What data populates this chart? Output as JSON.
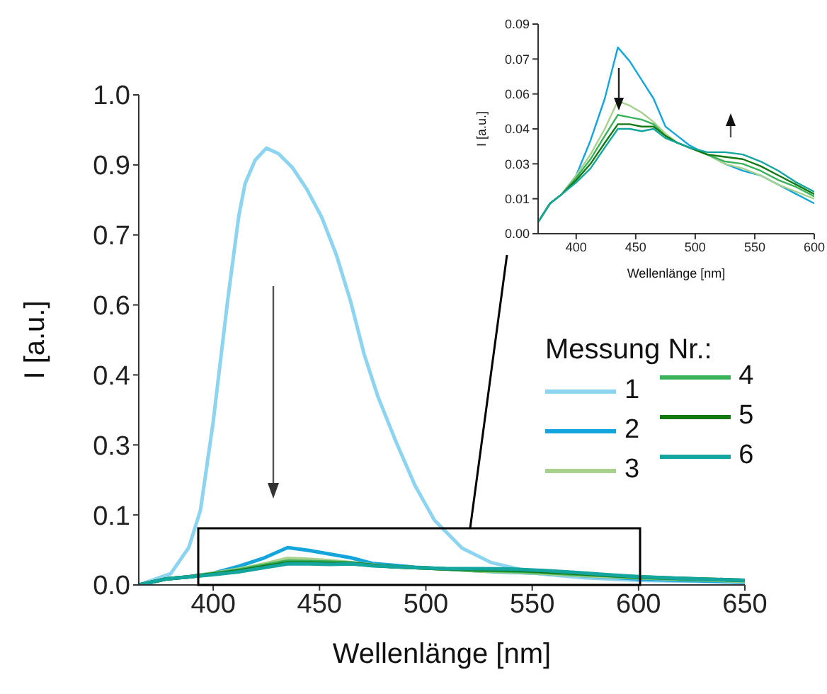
{
  "chart_data": [
    {
      "type": "line",
      "xlabel": "Wellenlänge [nm]",
      "ylabel": "I [a.u.]",
      "legend_title": "Messung Nr.:",
      "legend": "right",
      "xlim": [
        365,
        650
      ],
      "xticks": [
        400,
        450,
        500,
        550,
        600,
        650
      ],
      "ylim": [
        0,
        1.05
      ],
      "yticks": [
        {
          "value": 0,
          "label": "0.0"
        },
        {
          "value": 0.15,
          "label": "0.1"
        },
        0.3,
        {
          "value": 0.45,
          "label": "0.4"
        },
        0.6,
        {
          "value": 0.75,
          "label": "0.7"
        },
        0.9,
        {
          "value": 1.05,
          "label": "1.0"
        }
      ],
      "series": [
        {
          "name": "1",
          "color": "#8dd4f0",
          "x": [
            365,
            380,
            388.5,
            394,
            400,
            406.7,
            412,
            415,
            419.7,
            425,
            430.7,
            437.3,
            444,
            451,
            458,
            464.7,
            471,
            477.5,
            486.3,
            495,
            504,
            517,
            530.7,
            553,
            575,
            600,
            650
          ],
          "values": [
            0,
            0.024,
            0.08,
            0.16,
            0.35,
            0.606,
            0.79,
            0.86,
            0.91,
            0.936,
            0.924,
            0.894,
            0.848,
            0.788,
            0.706,
            0.606,
            0.494,
            0.403,
            0.303,
            0.212,
            0.139,
            0.079,
            0.048,
            0.024,
            0.015,
            0.01,
            0.006
          ]
        },
        {
          "name": "2",
          "color": "#14a5dc",
          "x": [
            365,
            378,
            388,
            400,
            412,
            424,
            435,
            445,
            455,
            465,
            475,
            485,
            495,
            510,
            525,
            540,
            555,
            570,
            585,
            600,
            620,
            650
          ],
          "values": [
            0,
            0.013,
            0.017,
            0.025,
            0.04,
            0.058,
            0.08,
            0.074,
            0.066,
            0.058,
            0.046,
            0.042,
            0.038,
            0.034,
            0.03,
            0.027,
            0.025,
            0.021,
            0.017,
            0.013,
            0.01,
            0.006
          ]
        },
        {
          "name": "3",
          "color": "#a9d18e",
          "x": [
            365,
            378,
            388,
            400,
            412,
            424,
            435,
            445,
            455,
            465,
            475,
            485,
            495,
            510,
            525,
            540,
            555,
            570,
            585,
            600,
            620,
            650
          ],
          "values": [
            0,
            0.013,
            0.017,
            0.025,
            0.034,
            0.045,
            0.057,
            0.055,
            0.052,
            0.048,
            0.043,
            0.039,
            0.037,
            0.034,
            0.03,
            0.028,
            0.025,
            0.021,
            0.018,
            0.015,
            0.012,
            0.008
          ]
        },
        {
          "name": "4",
          "color": "#3ab25a",
          "x": [
            365,
            378,
            388,
            400,
            412,
            424,
            435,
            445,
            455,
            465,
            475,
            485,
            495,
            510,
            525,
            540,
            555,
            570,
            585,
            600,
            620,
            650
          ],
          "values": [
            0,
            0.013,
            0.017,
            0.024,
            0.032,
            0.042,
            0.051,
            0.05,
            0.049,
            0.047,
            0.042,
            0.039,
            0.037,
            0.034,
            0.031,
            0.03,
            0.027,
            0.023,
            0.02,
            0.016,
            0.013,
            0.009
          ]
        },
        {
          "name": "5",
          "color": "#137a13",
          "x": [
            365,
            378,
            388,
            400,
            412,
            424,
            435,
            445,
            455,
            465,
            475,
            485,
            495,
            510,
            525,
            540,
            555,
            570,
            585,
            600,
            620,
            650
          ],
          "values": [
            0,
            0.013,
            0.017,
            0.023,
            0.03,
            0.039,
            0.047,
            0.047,
            0.046,
            0.046,
            0.042,
            0.039,
            0.037,
            0.034,
            0.033,
            0.032,
            0.029,
            0.025,
            0.021,
            0.017,
            0.014,
            0.01
          ]
        },
        {
          "name": "6",
          "color": "#13a59e",
          "x": [
            365,
            378,
            388,
            400,
            412,
            424,
            435,
            445,
            455,
            465,
            475,
            485,
            495,
            510,
            525,
            540,
            555,
            570,
            585,
            600,
            620,
            650
          ],
          "values": [
            0,
            0.013,
            0.017,
            0.022,
            0.028,
            0.037,
            0.045,
            0.045,
            0.044,
            0.045,
            0.041,
            0.039,
            0.037,
            0.035,
            0.035,
            0.034,
            0.031,
            0.027,
            0.022,
            0.018,
            0.014,
            0.01
          ]
        }
      ]
    },
    {
      "type": "line",
      "xlabel": "Wellenlänge [nm]",
      "ylabel": "I [a.u.]",
      "xlim": [
        368,
        600
      ],
      "xticks": [
        400,
        450,
        500,
        550,
        600
      ],
      "ylim": [
        0,
        0.09
      ],
      "yticks": [
        {
          "value": 0,
          "label": "0.00"
        },
        {
          "value": 0.015,
          "label": "0.01"
        },
        {
          "value": 0.03,
          "label": "0.03"
        },
        {
          "value": 0.045,
          "label": "0.04"
        },
        {
          "value": 0.06,
          "label": "0.06"
        },
        {
          "value": 0.075,
          "label": "0.07"
        },
        {
          "value": 0.09,
          "label": "0.09"
        }
      ],
      "series": [
        {
          "color": "#14a5dc",
          "x": [
            388,
            400,
            412,
            424,
            435,
            445,
            455,
            465,
            475,
            485,
            495,
            510,
            525,
            540,
            555,
            570,
            585,
            600
          ],
          "values": [
            0.017,
            0.025,
            0.04,
            0.058,
            0.08,
            0.074,
            0.066,
            0.058,
            0.046,
            0.042,
            0.038,
            0.034,
            0.03,
            0.027,
            0.025,
            0.021,
            0.017,
            0.013
          ]
        },
        {
          "color": "#a9d18e",
          "x": [
            368,
            378,
            388,
            400,
            412,
            424,
            435,
            445,
            455,
            465,
            475,
            485,
            495,
            510,
            525,
            540,
            555,
            570,
            585,
            600
          ],
          "values": [
            0.005,
            0.013,
            0.017,
            0.025,
            0.034,
            0.045,
            0.057,
            0.055,
            0.052,
            0.048,
            0.043,
            0.039,
            0.037,
            0.034,
            0.03,
            0.028,
            0.025,
            0.021,
            0.018,
            0.015
          ]
        },
        {
          "color": "#3ab25a",
          "x": [
            368,
            378,
            388,
            400,
            412,
            424,
            435,
            445,
            455,
            465,
            475,
            485,
            495,
            510,
            525,
            540,
            555,
            570,
            585,
            600
          ],
          "values": [
            0.005,
            0.013,
            0.017,
            0.024,
            0.032,
            0.042,
            0.051,
            0.05,
            0.049,
            0.047,
            0.042,
            0.039,
            0.037,
            0.034,
            0.031,
            0.03,
            0.027,
            0.023,
            0.02,
            0.016
          ]
        },
        {
          "color": "#137a13",
          "x": [
            368,
            378,
            388,
            400,
            412,
            424,
            435,
            445,
            455,
            465,
            475,
            485,
            495,
            510,
            525,
            540,
            555,
            570,
            585,
            600
          ],
          "values": [
            0.005,
            0.013,
            0.017,
            0.023,
            0.03,
            0.039,
            0.047,
            0.047,
            0.046,
            0.046,
            0.042,
            0.039,
            0.037,
            0.034,
            0.033,
            0.032,
            0.029,
            0.025,
            0.021,
            0.017
          ]
        },
        {
          "color": "#13a59e",
          "x": [
            368,
            378,
            388,
            400,
            412,
            424,
            435,
            445,
            455,
            465,
            475,
            485,
            495,
            510,
            525,
            540,
            555,
            570,
            585,
            600
          ],
          "values": [
            0.005,
            0.013,
            0.017,
            0.022,
            0.028,
            0.037,
            0.045,
            0.045,
            0.044,
            0.045,
            0.041,
            0.039,
            0.037,
            0.035,
            0.035,
            0.034,
            0.031,
            0.027,
            0.022,
            0.018
          ]
        }
      ]
    }
  ]
}
